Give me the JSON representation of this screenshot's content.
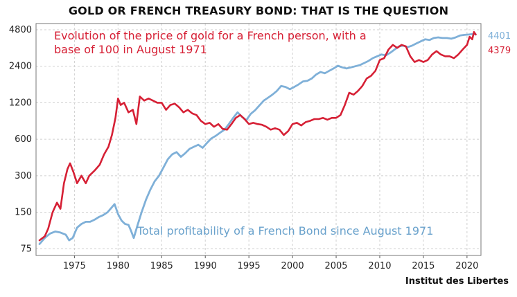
{
  "header": {
    "title": "GOLD OR FRENCH TREASURY BOND: THAT IS THE QUESTION"
  },
  "footer": {
    "credit": "Institut des Libertes"
  },
  "colors": {
    "gold": "#d62035",
    "bond": "#7fb0d8",
    "grid": "#cfcfcf"
  },
  "chart_data": {
    "type": "line",
    "title": "GOLD OR FRENCH TREASURY BOND: THAT IS THE QUESTION",
    "yscale": "log",
    "xlim": [
      1970.6,
      2021.6
    ],
    "ylim": [
      66,
      5400
    ],
    "grid": true,
    "x_ticks": [
      1975,
      1980,
      1985,
      1990,
      1995,
      2000,
      2005,
      2010,
      2015,
      2020
    ],
    "y_ticks": [
      75,
      150,
      300,
      600,
      1200,
      2400,
      4800
    ],
    "annotations": {
      "gold": "Evolution of the price of gold for a French person, with a base of 100 in August 1971",
      "gold_line1": "Evolution of the price of gold for a French person, with a",
      "gold_line2": "base of 100 in August 1971",
      "bond": "Total profitability of a French Bond since August 1971"
    },
    "series": [
      {
        "key": "gold",
        "end_label": "4379",
        "x": [
          1971.0,
          1971.6,
          1972.0,
          1972.5,
          1973.0,
          1973.4,
          1973.8,
          1974.2,
          1974.5,
          1974.9,
          1975.3,
          1975.8,
          1976.3,
          1976.7,
          1977.3,
          1977.9,
          1978.4,
          1978.9,
          1979.3,
          1979.7,
          1980.0,
          1980.3,
          1980.7,
          1981.2,
          1981.7,
          1982.1,
          1982.5,
          1983.0,
          1983.5,
          1984.0,
          1984.5,
          1985.0,
          1985.5,
          1986.0,
          1986.5,
          1987.0,
          1987.5,
          1988.0,
          1988.5,
          1989.0,
          1989.5,
          1990.0,
          1990.5,
          1991.0,
          1991.5,
          1992.0,
          1992.5,
          1993.0,
          1993.5,
          1994.0,
          1994.5,
          1995.0,
          1995.5,
          1996.0,
          1996.5,
          1997.0,
          1997.5,
          1998.0,
          1998.5,
          1999.0,
          1999.5,
          2000.0,
          2000.5,
          2001.0,
          2001.5,
          2002.0,
          2002.5,
          2003.0,
          2003.5,
          2004.0,
          2004.5,
          2005.0,
          2005.5,
          2006.0,
          2006.5,
          2007.0,
          2007.5,
          2008.0,
          2008.5,
          2009.0,
          2009.5,
          2010.0,
          2010.5,
          2011.0,
          2011.5,
          2012.0,
          2012.5,
          2013.0,
          2013.5,
          2014.0,
          2014.5,
          2015.0,
          2015.5,
          2016.0,
          2016.5,
          2017.0,
          2017.5,
          2018.0,
          2018.5,
          2019.0,
          2019.5,
          2020.0,
          2020.3,
          2020.6,
          2020.8,
          2021.0
        ],
        "values": [
          88,
          95,
          110,
          150,
          180,
          160,
          260,
          340,
          380,
          320,
          260,
          300,
          260,
          300,
          330,
          370,
          450,
          520,
          650,
          900,
          1300,
          1150,
          1200,
          1000,
          1050,
          800,
          1350,
          1250,
          1300,
          1250,
          1200,
          1200,
          1050,
          1150,
          1180,
          1100,
          1000,
          1050,
          980,
          950,
          850,
          800,
          820,
          760,
          800,
          730,
          720,
          800,
          900,
          950,
          880,
          800,
          820,
          800,
          790,
          760,
          720,
          740,
          720,
          650,
          700,
          800,
          820,
          780,
          830,
          850,
          880,
          880,
          900,
          870,
          900,
          900,
          950,
          1150,
          1450,
          1400,
          1500,
          1650,
          1900,
          2000,
          2200,
          2700,
          2800,
          3300,
          3600,
          3400,
          3600,
          3500,
          2900,
          2600,
          2700,
          2600,
          2700,
          3000,
          3200,
          3000,
          2900,
          2900,
          2800,
          3000,
          3300,
          3600,
          4200,
          4000,
          4600,
          4379
        ]
      },
      {
        "key": "bond",
        "end_label": "4401",
        "x": [
          1971.0,
          1971.6,
          1972.2,
          1972.8,
          1973.4,
          1974.0,
          1974.4,
          1974.8,
          1975.3,
          1975.8,
          1976.3,
          1976.8,
          1977.3,
          1977.8,
          1978.3,
          1978.8,
          1979.3,
          1979.6,
          1980.0,
          1980.4,
          1980.8,
          1981.2,
          1981.5,
          1981.8,
          1982.2,
          1982.7,
          1983.2,
          1983.7,
          1984.2,
          1984.7,
          1985.2,
          1985.7,
          1986.2,
          1986.7,
          1987.2,
          1987.7,
          1988.2,
          1988.7,
          1989.2,
          1989.7,
          1990.2,
          1990.7,
          1991.2,
          1991.7,
          1992.2,
          1992.7,
          1993.2,
          1993.7,
          1994.2,
          1994.7,
          1995.2,
          1995.7,
          1996.2,
          1996.7,
          1997.2,
          1997.7,
          1998.2,
          1998.7,
          1999.2,
          1999.7,
          2000.2,
          2000.7,
          2001.2,
          2001.7,
          2002.2,
          2002.7,
          2003.2,
          2003.7,
          2004.2,
          2004.7,
          2005.2,
          2005.7,
          2006.2,
          2006.7,
          2007.2,
          2007.7,
          2008.2,
          2008.7,
          2009.2,
          2009.7,
          2010.2,
          2010.7,
          2011.2,
          2011.7,
          2012.2,
          2012.7,
          2013.2,
          2013.7,
          2014.2,
          2014.7,
          2015.2,
          2015.7,
          2016.2,
          2016.7,
          2017.2,
          2017.7,
          2018.2,
          2018.7,
          2019.2,
          2019.7,
          2020.2,
          2020.7,
          2021.0
        ],
        "values": [
          82,
          92,
          100,
          104,
          102,
          98,
          88,
          92,
          112,
          120,
          125,
          125,
          130,
          137,
          142,
          150,
          165,
          175,
          145,
          128,
          120,
          118,
          105,
          92,
          115,
          150,
          190,
          230,
          270,
          300,
          350,
          410,
          450,
          470,
          430,
          460,
          500,
          520,
          540,
          510,
          560,
          610,
          640,
          680,
          720,
          800,
          900,
          1000,
          920,
          860,
          970,
          1040,
          1140,
          1250,
          1320,
          1400,
          1500,
          1650,
          1620,
          1550,
          1620,
          1700,
          1800,
          1820,
          1900,
          2050,
          2150,
          2100,
          2200,
          2300,
          2420,
          2350,
          2300,
          2350,
          2400,
          2450,
          2550,
          2650,
          2800,
          2900,
          3000,
          2950,
          3100,
          3300,
          3500,
          3550,
          3450,
          3550,
          3700,
          3850,
          4000,
          3950,
          4100,
          4150,
          4100,
          4100,
          4050,
          4150,
          4300,
          4350,
          4380,
          4420,
          4401
        ]
      }
    ]
  }
}
